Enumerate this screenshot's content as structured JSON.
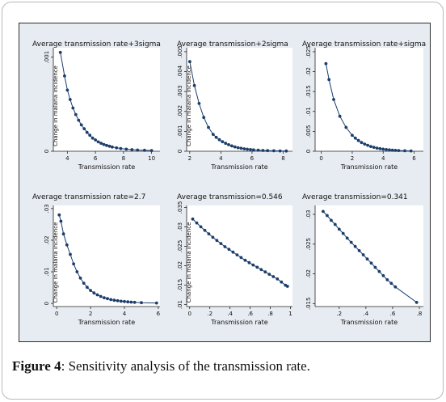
{
  "caption": {
    "label": "Figure 4",
    "text": ": Sensitivity analysis of the transmission rate."
  },
  "colors": {
    "line": "#1b3d6a",
    "marker": "#1b3d6a",
    "panel_bg": "#ffffff",
    "figure_bg": "#e7ecf2"
  },
  "chart_data": [
    {
      "type": "line",
      "title": "Average transmission rate+3sigma",
      "xlabel": "Transmission rate",
      "ylabel": "Change in malaria incidence",
      "xlim": [
        3,
        10.6
      ],
      "ylim": [
        0,
        0.0011
      ],
      "xticks": [
        4,
        6,
        8,
        10
      ],
      "xtick_labels": [
        "4",
        "6",
        "8",
        "10"
      ],
      "yticks": [
        0,
        0.001
      ],
      "ytick_labels": [
        "0",
        ".001"
      ],
      "x": [
        3.5,
        3.8,
        4.0,
        4.2,
        4.4,
        4.6,
        4.8,
        5.0,
        5.2,
        5.4,
        5.6,
        5.8,
        6.0,
        6.2,
        6.4,
        6.6,
        6.8,
        7.0,
        7.2,
        7.5,
        7.8,
        8.2,
        8.6,
        9.0,
        9.5,
        10.0
      ],
      "y": [
        0.00105,
        0.0008,
        0.00065,
        0.00055,
        0.00046,
        0.00039,
        0.00033,
        0.00028,
        0.00024,
        0.0002,
        0.00017,
        0.00014,
        0.00012,
        0.0001,
        8.5e-05,
        7.2e-05,
        6.2e-05,
        5.3e-05,
        4.5e-05,
        3.6e-05,
        2.9e-05,
        2.2e-05,
        1.7e-05,
        1.3e-05,
        1e-05,
        8e-06
      ]
    },
    {
      "type": "line",
      "title": "Average transmission+2sigma",
      "xlabel": "Transmission rate",
      "ylabel": "Change in malaria incidence",
      "xlim": [
        1.8,
        8.6
      ],
      "ylim": [
        0,
        0.0052
      ],
      "xticks": [
        2,
        4,
        6,
        8
      ],
      "xtick_labels": [
        "2",
        "4",
        "6",
        "8"
      ],
      "yticks": [
        0,
        0.001,
        0.002,
        0.003,
        0.004,
        0.005
      ],
      "ytick_labels": [
        "0",
        ".001",
        ".002",
        ".003",
        ".004",
        ".005"
      ],
      "x": [
        2.0,
        2.3,
        2.6,
        2.9,
        3.2,
        3.5,
        3.7,
        3.9,
        4.1,
        4.3,
        4.5,
        4.7,
        4.9,
        5.1,
        5.3,
        5.5,
        5.7,
        5.9,
        6.1,
        6.4,
        6.7,
        7.0,
        7.4,
        7.8,
        8.2
      ],
      "y": [
        0.0045,
        0.0033,
        0.0024,
        0.0017,
        0.0012,
        0.00085,
        0.0007,
        0.00058,
        0.00048,
        0.0004,
        0.00033,
        0.00027,
        0.00022,
        0.00018,
        0.00015,
        0.00012,
        0.0001,
        8.5e-05,
        7e-05,
        5.5e-05,
        4.2e-05,
        3.2e-05,
        2.3e-05,
        1.6e-05,
        1.2e-05
      ]
    },
    {
      "type": "line",
      "title": "Average transmission rate+sigma",
      "xlabel": "Transmission rate",
      "ylabel": "",
      "xlim": [
        -0.4,
        6.6
      ],
      "ylim": [
        0,
        0.026
      ],
      "xticks": [
        0,
        2,
        4,
        6
      ],
      "xtick_labels": [
        "0",
        "2",
        "4",
        "6"
      ],
      "yticks": [
        0,
        0.005,
        0.01,
        0.015,
        0.02,
        0.025
      ],
      "ytick_labels": [
        "0",
        ".005",
        ".01",
        ".015",
        ".02",
        ".025"
      ],
      "x": [
        0.3,
        0.5,
        0.8,
        1.2,
        1.6,
        2.0,
        2.2,
        2.4,
        2.6,
        2.8,
        3.0,
        3.2,
        3.4,
        3.6,
        3.8,
        4.0,
        4.2,
        4.4,
        4.6,
        4.8,
        5.0,
        5.4,
        5.8
      ],
      "y": [
        0.022,
        0.018,
        0.013,
        0.0088,
        0.006,
        0.004,
        0.0033,
        0.0027,
        0.0022,
        0.0018,
        0.0015,
        0.0012,
        0.001,
        0.0008,
        0.00065,
        0.00052,
        0.00042,
        0.00034,
        0.00027,
        0.00022,
        0.00018,
        0.00012,
        8e-05
      ]
    },
    {
      "type": "line",
      "title": "Average transmission rate=2.7",
      "xlabel": "Transmission rate",
      "ylabel": "Change in malaria incidence",
      "xlim": [
        -0.2,
        6.1
      ],
      "ylim": [
        -0.001,
        0.031
      ],
      "xticks": [
        0,
        2,
        4,
        6
      ],
      "xtick_labels": [
        "0",
        "2",
        "4",
        "6"
      ],
      "yticks": [
        0,
        0.01,
        0.02,
        0.03
      ],
      "ytick_labels": [
        "0",
        ".01",
        ".02",
        ".03"
      ],
      "x": [
        0.15,
        0.25,
        0.4,
        0.6,
        0.8,
        1.0,
        1.2,
        1.4,
        1.6,
        1.8,
        2.0,
        2.2,
        2.4,
        2.6,
        2.8,
        3.0,
        3.2,
        3.4,
        3.6,
        3.8,
        4.0,
        4.2,
        4.4,
        4.6,
        5.0,
        5.9
      ],
      "y": [
        0.028,
        0.026,
        0.022,
        0.0185,
        0.0155,
        0.0125,
        0.01,
        0.008,
        0.0064,
        0.0051,
        0.0041,
        0.0033,
        0.0027,
        0.0022,
        0.0018,
        0.0015,
        0.0012,
        0.001,
        0.00085,
        0.0007,
        0.00058,
        0.00048,
        0.0004,
        0.00033,
        0.00024,
        0.00012
      ]
    },
    {
      "type": "line",
      "title": "Average transmission=0.546",
      "xlabel": "Transmission rate",
      "ylabel": "Change in malaria incidence",
      "xlim": [
        -0.03,
        1.02
      ],
      "ylim": [
        0.0095,
        0.0355
      ],
      "xticks": [
        0,
        0.2,
        0.4,
        0.6,
        0.8,
        1
      ],
      "xtick_labels": [
        "0",
        ".2",
        ".4",
        ".6",
        ".8",
        "1"
      ],
      "yticks": [
        0.01,
        0.015,
        0.02,
        0.025,
        0.03,
        0.035
      ],
      "ytick_labels": [
        ".01",
        ".015",
        ".02",
        ".025",
        ".03",
        ".035"
      ],
      "x": [
        0.03,
        0.07,
        0.11,
        0.15,
        0.19,
        0.23,
        0.27,
        0.31,
        0.35,
        0.39,
        0.43,
        0.47,
        0.51,
        0.55,
        0.59,
        0.63,
        0.67,
        0.71,
        0.75,
        0.79,
        0.83,
        0.87,
        0.91,
        0.95,
        0.97
      ],
      "y": [
        0.032,
        0.031,
        0.03,
        0.0291,
        0.0282,
        0.0273,
        0.0265,
        0.0257,
        0.0249,
        0.0242,
        0.0235,
        0.0228,
        0.0221,
        0.0214,
        0.0208,
        0.0202,
        0.0196,
        0.019,
        0.0184,
        0.0178,
        0.0172,
        0.0166,
        0.0158,
        0.015,
        0.0147
      ]
    },
    {
      "type": "line",
      "title": "Average transmission=0.341",
      "xlabel": "Transmission rate",
      "ylabel": "",
      "xlim": [
        0.02,
        0.83
      ],
      "ylim": [
        0.0145,
        0.0315
      ],
      "xticks": [
        0.2,
        0.4,
        0.6,
        0.8
      ],
      "xtick_labels": [
        ".2",
        ".4",
        ".6",
        ".8"
      ],
      "yticks": [
        0.015,
        0.02,
        0.025,
        0.03
      ],
      "ytick_labels": [
        ".015",
        ".02",
        ".025",
        ".03"
      ],
      "x": [
        0.08,
        0.11,
        0.14,
        0.17,
        0.2,
        0.23,
        0.26,
        0.29,
        0.32,
        0.35,
        0.38,
        0.41,
        0.44,
        0.47,
        0.5,
        0.53,
        0.56,
        0.59,
        0.62,
        0.78
      ],
      "y": [
        0.0305,
        0.0298,
        0.029,
        0.0283,
        0.0275,
        0.0268,
        0.026,
        0.0253,
        0.0246,
        0.0239,
        0.0232,
        0.0225,
        0.0218,
        0.0211,
        0.0204,
        0.0197,
        0.019,
        0.0184,
        0.0178,
        0.0152
      ]
    }
  ]
}
